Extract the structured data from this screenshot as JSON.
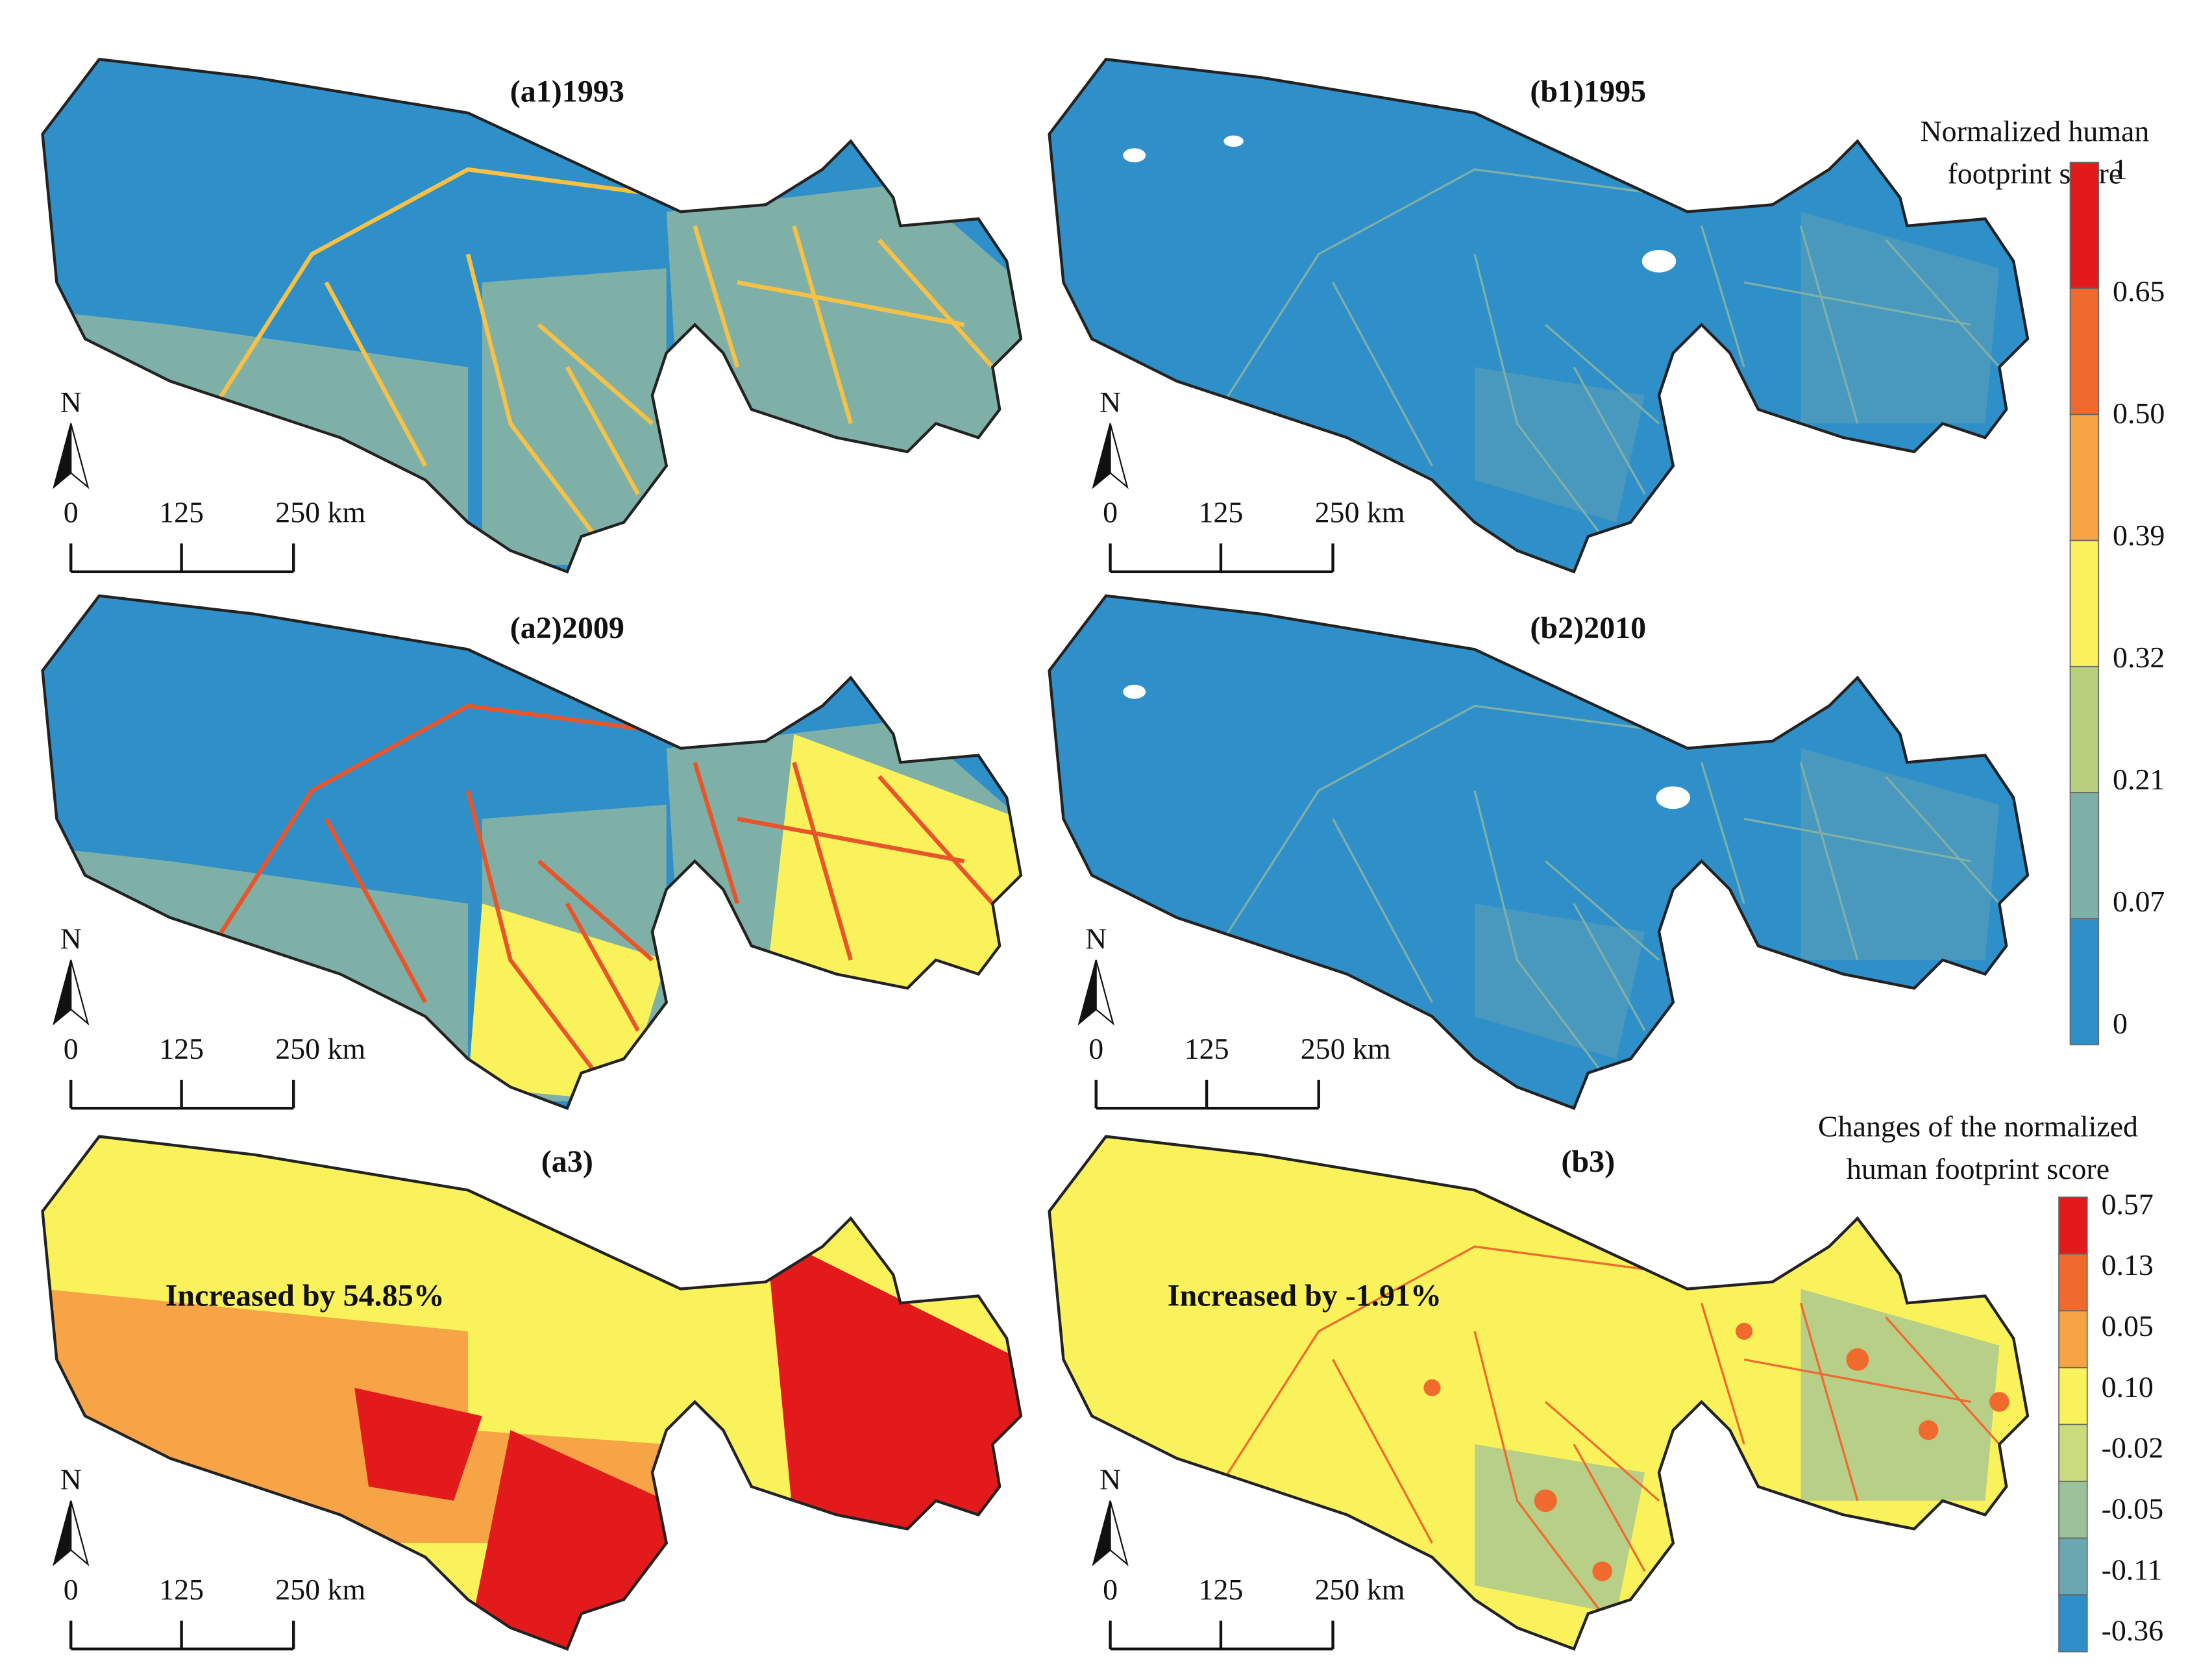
{
  "panels": [
    {
      "title": "(a1)1993",
      "north": "N",
      "scale_labels": [
        "0",
        "125",
        "250 km"
      ]
    },
    {
      "title": "(b1)1995",
      "north": "N",
      "scale_labels": [
        "0",
        "125",
        "250 km"
      ]
    },
    {
      "title": "(a2)2009",
      "north": "N",
      "scale_labels": [
        "0",
        "125",
        "250 km"
      ]
    },
    {
      "title": "(b2)2010",
      "north": "N",
      "scale_labels": [
        "0",
        "125",
        "250 km"
      ]
    },
    {
      "title": "(a3)",
      "north": "N",
      "scale_labels": [
        "0",
        "125",
        "250 km"
      ],
      "annotation": "Increased by 54.85%"
    },
    {
      "title": "(b3)",
      "north": "N",
      "scale_labels": [
        "0",
        "125",
        "250 km"
      ],
      "annotation": "Increased by -1.91%"
    }
  ],
  "legends": [
    {
      "title_lines": [
        "Normalized human",
        "footprint score"
      ],
      "labels": [
        "1",
        "0.65",
        "0.50",
        "0.39",
        "0.32",
        "0.21",
        "0.07",
        "0"
      ],
      "colors": [
        "#e31a1c",
        "#f06a2e",
        "#f6a445",
        "#f9f25a",
        "#b8cf7e",
        "#7fb0a8",
        "#2f8fc8"
      ]
    },
    {
      "title_lines": [
        "Changes of the normalized",
        "human footprint score"
      ],
      "labels": [
        "0.57",
        "0.13",
        "0.05",
        "0.10",
        "-0.02",
        "-0.05",
        "-0.11",
        "-0.36"
      ],
      "colors": [
        "#e31a1c",
        "#f06a2e",
        "#f6a445",
        "#f9f25a",
        "#c9db7c",
        "#9cc19a",
        "#6aa7b0",
        "#2f8fc8"
      ]
    }
  ]
}
